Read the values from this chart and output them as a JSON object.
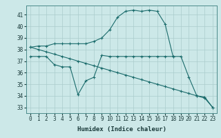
{
  "title": "",
  "xlabel": "Humidex (Indice chaleur)",
  "ylabel": "",
  "background_color": "#cce8e8",
  "grid_color": "#aacccc",
  "line_color": "#1a6b6b",
  "xlim": [
    -0.5,
    23.5
  ],
  "ylim": [
    32.5,
    41.8
  ],
  "yticks": [
    33,
    34,
    35,
    36,
    37,
    38,
    39,
    40,
    41
  ],
  "xticks": [
    0,
    1,
    2,
    3,
    4,
    5,
    6,
    7,
    8,
    9,
    10,
    11,
    12,
    13,
    14,
    15,
    16,
    17,
    18,
    19,
    20,
    21,
    22,
    23
  ],
  "series": [
    {
      "x": [
        0,
        1,
        2,
        3,
        4,
        5,
        6,
        7,
        8,
        9,
        10,
        11,
        12,
        13,
        14,
        15,
        16,
        17,
        18
      ],
      "y": [
        38.2,
        38.3,
        38.3,
        38.5,
        38.5,
        38.5,
        38.5,
        38.5,
        38.7,
        39.0,
        39.7,
        40.8,
        41.3,
        41.4,
        41.3,
        41.4,
        41.3,
        40.2,
        37.4
      ]
    },
    {
      "x": [
        0,
        1,
        2,
        3,
        4,
        5,
        6,
        7,
        8,
        9,
        10,
        11,
        12,
        13,
        14,
        15,
        16,
        17,
        18,
        19,
        20,
        21,
        22,
        23
      ],
      "y": [
        37.4,
        37.4,
        37.4,
        36.7,
        36.5,
        36.5,
        34.1,
        35.3,
        35.6,
        37.5,
        37.4,
        37.4,
        37.4,
        37.4,
        37.4,
        37.4,
        37.4,
        37.4,
        37.4,
        37.4,
        35.6,
        34.0,
        33.9,
        33.0
      ]
    },
    {
      "x": [
        0,
        1,
        2,
        3,
        4,
        5,
        6,
        7,
        8,
        9,
        10,
        11,
        12,
        13,
        14,
        15,
        16,
        17,
        18,
        19,
        20,
        21,
        22,
        23
      ],
      "y": [
        38.2,
        38.0,
        37.8,
        37.6,
        37.4,
        37.2,
        37.0,
        36.8,
        36.6,
        36.4,
        36.2,
        36.0,
        35.8,
        35.6,
        35.4,
        35.2,
        35.0,
        34.8,
        34.6,
        34.4,
        34.2,
        34.0,
        33.8,
        33.0
      ]
    }
  ]
}
